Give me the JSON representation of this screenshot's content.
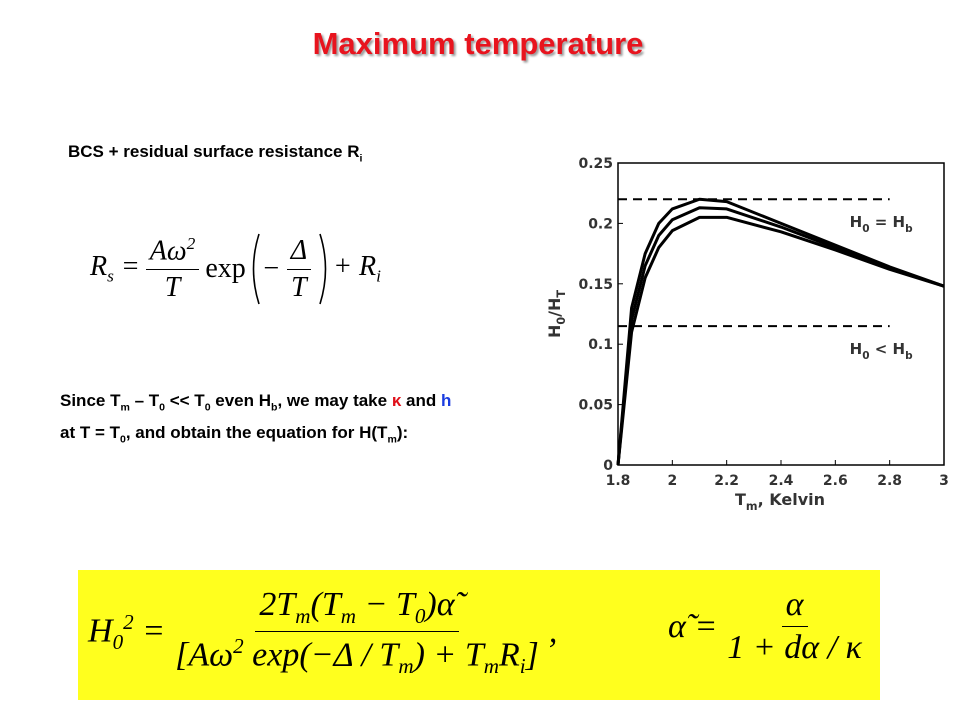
{
  "title": "Maximum temperature",
  "subtitle": [
    "BCS + residual surface resistance R",
    {
      "sub": "i"
    }
  ],
  "formula_rs": {
    "lhs": [
      "R",
      {
        "sub": "s"
      },
      " ="
    ],
    "num": [
      "Aω",
      {
        "sup": "2"
      }
    ],
    "den": [
      "T"
    ],
    "func": [
      "exp"
    ],
    "inner_sign": [
      "−"
    ],
    "inner_num": [
      "Δ"
    ],
    "inner_den": [
      "T"
    ],
    "rhs": [
      "+ R",
      {
        "sub": "i"
      }
    ]
  },
  "paragraph": [
    "Since T",
    {
      "sub": "m"
    },
    " – T",
    {
      "sub": "0"
    },
    " << T",
    {
      "sub": "0"
    },
    " even H",
    {
      "sub": "b"
    },
    ", we may take ",
    {
      "text": "κ",
      "color": "#e0101a"
    },
    " and ",
    {
      "text": "h",
      "color": "#1a3ce0"
    },
    " at T = T",
    {
      "sub": "0"
    },
    ", and obtain the equation for H(T",
    {
      "sub": "m"
    },
    "):"
  ],
  "formula_h": {
    "lhs": [
      "H",
      {
        "sub": "0"
      },
      {
        "sup": "2"
      },
      " ="
    ],
    "num": [
      "2T",
      {
        "sub": "m"
      },
      "(T",
      {
        "sub": "m"
      },
      " − T",
      {
        "sub": "0"
      },
      ")α̃"
    ],
    "den": [
      "[Aω",
      {
        "sup": "2"
      },
      " exp(−Δ / T",
      {
        "sub": "m"
      },
      ") + T",
      {
        "sub": "m"
      },
      "R",
      {
        "sub": "i"
      },
      "]"
    ],
    "tail": [
      ","
    ]
  },
  "formula_alpha": {
    "lhs": [
      "α̃ ="
    ],
    "num": [
      "α"
    ],
    "den": [
      "1 + dα / κ"
    ]
  },
  "chart_data": {
    "type": "line",
    "xlabel": [
      "T",
      {
        "sub": "m"
      },
      ", Kelvin"
    ],
    "ylabel": [
      "H",
      {
        "sub": "0"
      },
      "/H",
      {
        "sub": "T"
      }
    ],
    "x": [
      1.8,
      1.85,
      1.9,
      1.95,
      2.0,
      2.1,
      2.2,
      2.4,
      2.6,
      2.8,
      3.0
    ],
    "series": [
      {
        "color": "#000000",
        "values": [
          0,
          0.13,
          0.175,
          0.2,
          0.212,
          0.22,
          0.218,
          0.2,
          0.182,
          0.164,
          0.148
        ]
      },
      {
        "color": "#000000",
        "values": [
          0,
          0.12,
          0.165,
          0.19,
          0.203,
          0.213,
          0.212,
          0.197,
          0.18,
          0.163,
          0.148
        ]
      },
      {
        "color": "#000000",
        "values": [
          0,
          0.11,
          0.155,
          0.18,
          0.194,
          0.205,
          0.205,
          0.193,
          0.178,
          0.162,
          0.148
        ]
      }
    ],
    "reference_lines": [
      {
        "value": 0.22,
        "x": [
          1.8,
          2.8
        ],
        "label": [
          "H",
          {
            "sub": "0"
          },
          " = H",
          {
            "sub": "b"
          }
        ]
      },
      {
        "value": 0.115,
        "x": [
          1.8,
          2.8
        ],
        "label": [
          "H",
          {
            "sub": "0"
          },
          " < H",
          {
            "sub": "b"
          }
        ]
      }
    ],
    "xlim": [
      1.8,
      3
    ],
    "ylim": [
      0,
      0.25
    ],
    "xticks": [
      1.8,
      2,
      2.2,
      2.4,
      2.6,
      2.8,
      3
    ],
    "yticks": [
      0,
      0.05,
      0.1,
      0.15,
      0.2,
      0.25
    ]
  }
}
